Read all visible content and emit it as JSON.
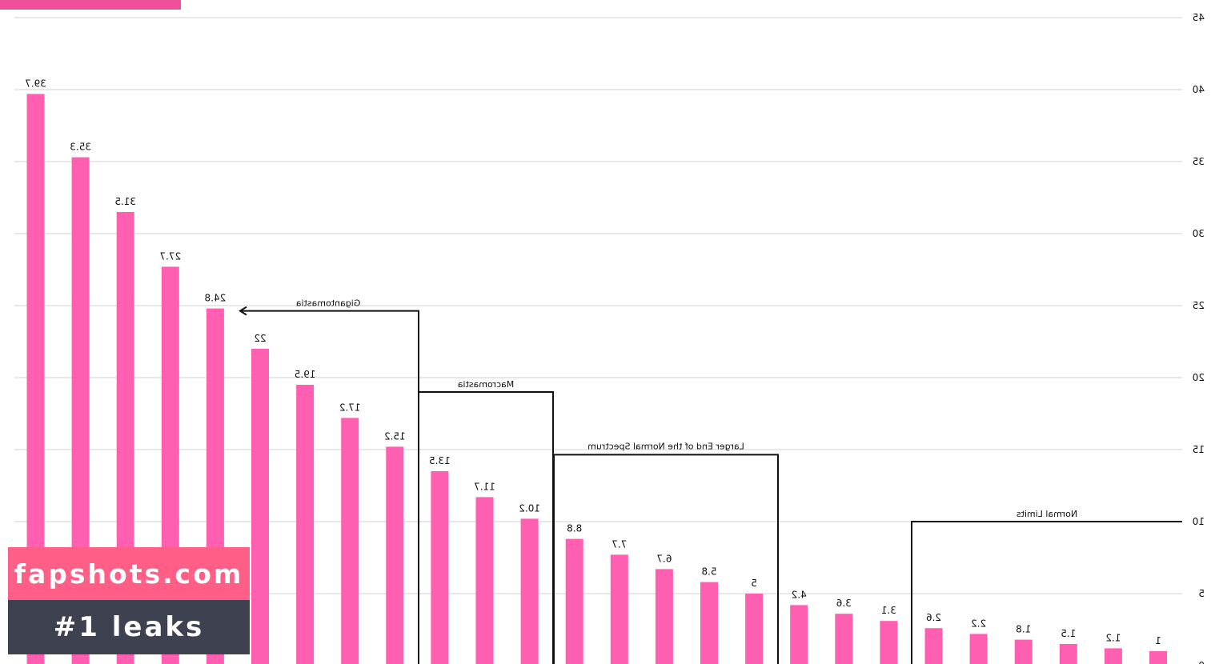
{
  "chart_data": {
    "type": "bar",
    "mirrored": true,
    "values": [
      39.7,
      35.3,
      31.5,
      27.7,
      24.8,
      22,
      19.5,
      17.2,
      15.2,
      13.5,
      11.7,
      10.2,
      8.8,
      7.7,
      6.7,
      5.8,
      5,
      4.2,
      3.6,
      3.1,
      2.6,
      2.2,
      1.8,
      1.5,
      1.2,
      1
    ],
    "data_labels": [
      "39.7",
      "35.3",
      "31.5",
      "27.7",
      "24.8",
      "22",
      "19.5",
      "17.2",
      "15.2",
      "13.5",
      "11.7",
      "10.2",
      "8.8",
      "7.7",
      "6.7",
      "5.8",
      "5",
      "4.2",
      "3.6",
      "3.1",
      "2.6",
      "2.2",
      "1.8",
      "1.5",
      "1.2",
      "1"
    ],
    "ylim": [
      0,
      45
    ],
    "yticks": [
      0,
      5,
      10,
      15,
      20,
      25,
      30,
      35,
      40,
      45
    ],
    "y_axis_side": "right",
    "grid": true,
    "bar_color": "#ff5fb0",
    "annotations": [
      {
        "label": "Gigantomastia",
        "from_value": 24.8,
        "arrow": true
      },
      {
        "label": "Macromastia",
        "from_value": 19.5
      },
      {
        "label": "Larger End of the Normal Spectrum",
        "from_value": 15.2
      },
      {
        "label": "Normal Limits",
        "from_value": 10
      }
    ]
  },
  "watermark": {
    "site": "fapshots.com",
    "tagline": "#1 leaks",
    "site_bg": "#ff5f86",
    "tagline_bg": "#3d4150"
  }
}
